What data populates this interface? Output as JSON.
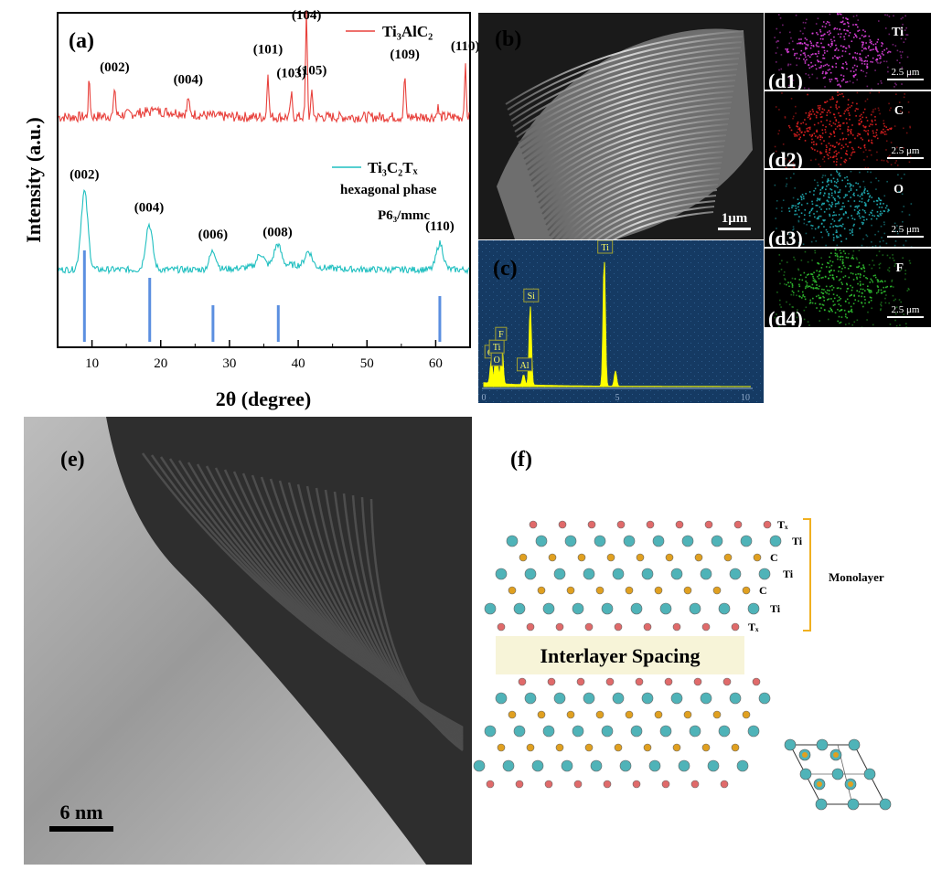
{
  "panels": {
    "a": "(a)",
    "b": "(b)",
    "c": "(c)",
    "d1": "(d1)",
    "d2": "(d2)",
    "d3": "(d3)",
    "d4": "(d4)",
    "e": "(e)",
    "f": "(f)"
  },
  "chart_data": {
    "type": "line",
    "xlabel": "2θ (degree)",
    "ylabel": "Intensity (a.u.)",
    "xlim": [
      5,
      65
    ],
    "xticks": [
      10,
      20,
      30,
      40,
      50,
      60
    ],
    "series": [
      {
        "name": "Ti₃AlC₂",
        "color": "#e8413c",
        "peaks": [
          {
            "x": 9.6,
            "label": "",
            "h": 0.35
          },
          {
            "x": 13.3,
            "label": "(002)",
            "h": 0.28
          },
          {
            "x": 19.0,
            "label": "",
            "h": 0.08
          },
          {
            "x": 24.0,
            "label": "(004)",
            "h": 0.16
          },
          {
            "x": 35.6,
            "label": "(101)",
            "h": 0.45
          },
          {
            "x": 39.0,
            "label": "(103)",
            "h": 0.22
          },
          {
            "x": 41.2,
            "label": "(104)",
            "h": 1.0
          },
          {
            "x": 42.0,
            "label": "(105)",
            "h": 0.25
          },
          {
            "x": 55.5,
            "label": "(109)",
            "h": 0.4
          },
          {
            "x": 60.3,
            "label": "",
            "h": 0.1
          },
          {
            "x": 64.3,
            "label": "(110)",
            "h": 0.48
          }
        ]
      },
      {
        "name": "Ti₃C₂Tₓ",
        "color": "#1fbfc0",
        "peaks": [
          {
            "x": 8.9,
            "label": "(002)",
            "h": 0.95
          },
          {
            "x": 18.3,
            "label": "(004)",
            "h": 0.55
          },
          {
            "x": 27.6,
            "label": "(006)",
            "h": 0.22
          },
          {
            "x": 34.5,
            "label": "",
            "h": 0.15
          },
          {
            "x": 37.0,
            "label": "(008)",
            "h": 0.25
          },
          {
            "x": 41.5,
            "label": "",
            "h": 0.18
          },
          {
            "x": 60.6,
            "label": "(110)",
            "h": 0.32
          }
        ]
      }
    ],
    "reference_lines": [
      8.9,
      18.4,
      27.6,
      37.1,
      60.6
    ],
    "reference_color": "#5b8fe0",
    "phase_note": [
      "hexagonal phase",
      "P6₃/mmc"
    ]
  },
  "sem": {
    "scale": "1μm"
  },
  "eds": {
    "x_ticks": [
      "0",
      "5",
      "10"
    ],
    "peaks": [
      {
        "x": 0.28,
        "h": 0.18,
        "label": "C"
      },
      {
        "x": 0.45,
        "h": 0.22,
        "label": "Ti"
      },
      {
        "x": 0.52,
        "h": 0.12,
        "label": "O"
      },
      {
        "x": 0.68,
        "h": 0.32,
        "label": "F"
      },
      {
        "x": 1.49,
        "h": 0.08,
        "label": "Al"
      },
      {
        "x": 1.74,
        "h": 0.62,
        "label": "Si"
      },
      {
        "x": 4.51,
        "h": 1.0,
        "label": "Ti"
      },
      {
        "x": 4.93,
        "h": 0.12,
        "label": ""
      }
    ]
  },
  "maps": [
    {
      "label": "(d1)",
      "el": "Ti",
      "color": "#e040e0",
      "scale": "2.5 μm"
    },
    {
      "label": "(d2)",
      "el": "C",
      "color": "#e02020",
      "scale": "2.5 μm"
    },
    {
      "label": "(d3)",
      "el": "O",
      "color": "#20b0b8",
      "scale": "2.5 μm"
    },
    {
      "label": "(d4)",
      "el": "F",
      "color": "#30c030",
      "scale": "2.5 μm"
    }
  ],
  "tem": {
    "scale": "6 nm"
  },
  "structure": {
    "layer_labels": [
      "Tₓ",
      "Ti",
      "C",
      "Ti",
      "C",
      "Ti",
      "Tₓ"
    ],
    "monolayer": "Monolayer",
    "interlayer": "Interlayer Spacing",
    "colors": {
      "tx": "#e06a6a",
      "ti": "#4fb3b8",
      "c": "#e0a020"
    }
  }
}
